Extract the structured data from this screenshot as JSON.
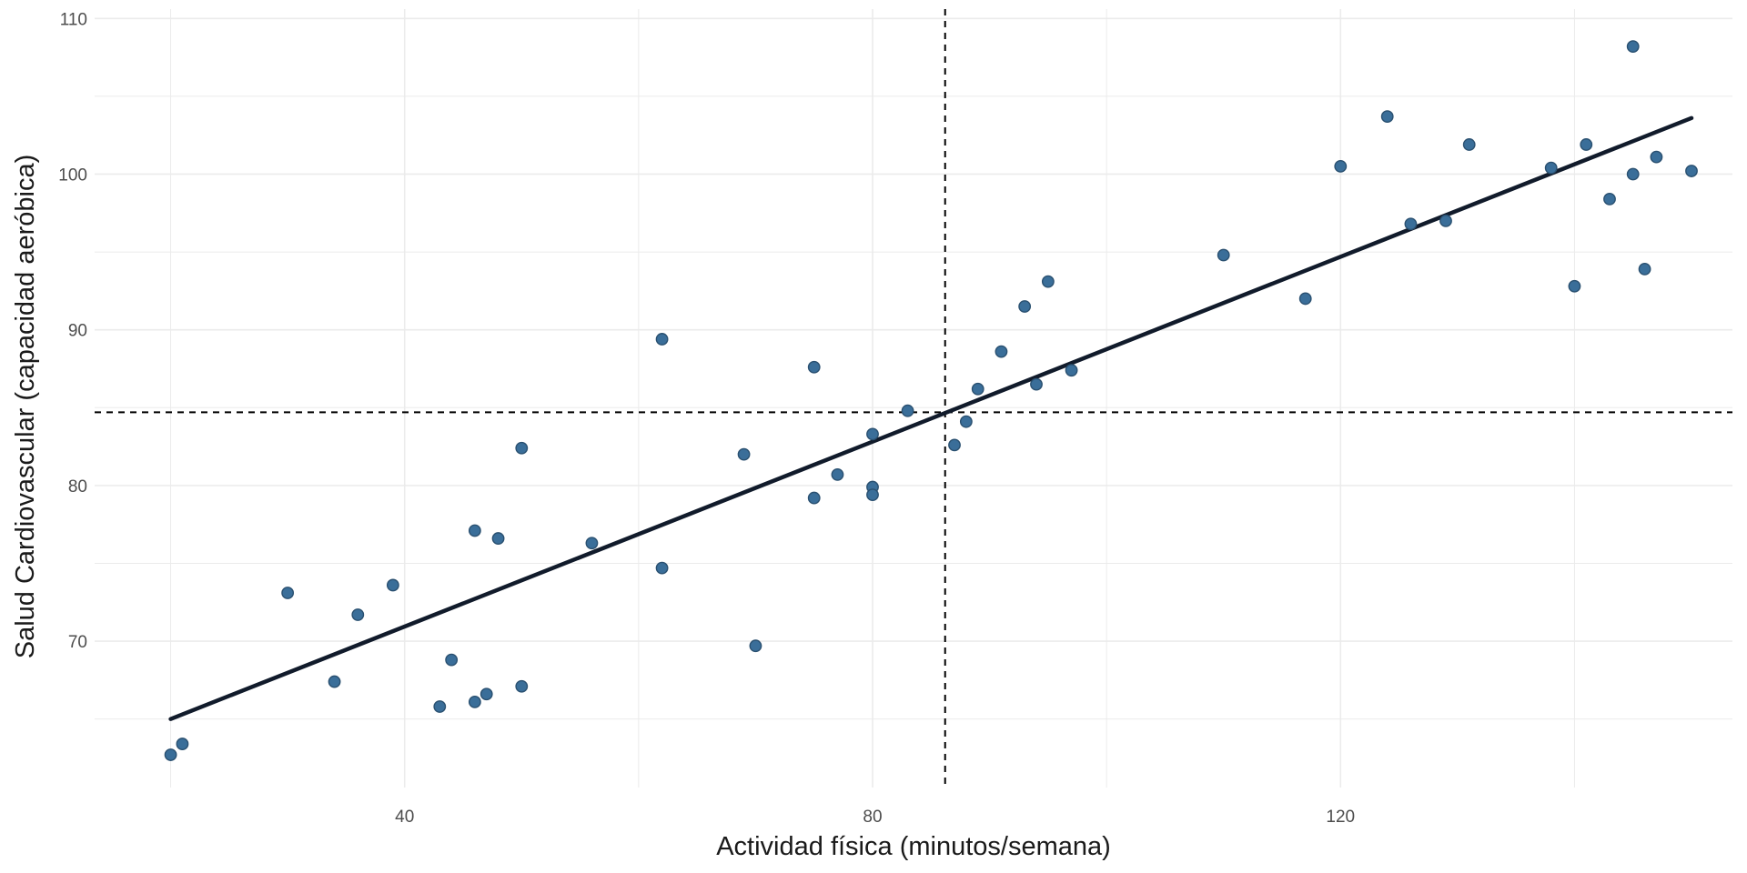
{
  "chart_data": {
    "type": "scatter",
    "title": "",
    "xlabel": "Actividad física (minutos/semana)",
    "ylabel": "Salud Cardiovascular (capacidad aeróbica)",
    "xlim": [
      13.5,
      153.5
    ],
    "ylim": [
      60.6,
      110.6
    ],
    "x_ticks": [
      40,
      80,
      120
    ],
    "x_tick_labels": [
      "40",
      "80",
      "120"
    ],
    "y_ticks": [
      70,
      80,
      90,
      100,
      110
    ],
    "y_tick_labels": [
      "70",
      "80",
      "90",
      "100",
      "110"
    ],
    "grid": true,
    "legend": "none",
    "colors": {
      "points": "#3a6e99",
      "point_outline": "#2a5070",
      "fit_line": "#111b2b",
      "reference_lines": "#000000",
      "grid": "#ebebeb"
    },
    "series": [
      {
        "values": [
          {
            "x": 20,
            "y": 62.7
          },
          {
            "x": 21,
            "y": 63.4
          },
          {
            "x": 30,
            "y": 73.1
          },
          {
            "x": 34,
            "y": 67.4
          },
          {
            "x": 36,
            "y": 71.7
          },
          {
            "x": 39,
            "y": 73.6
          },
          {
            "x": 43,
            "y": 65.8
          },
          {
            "x": 44,
            "y": 68.8
          },
          {
            "x": 46,
            "y": 66.1
          },
          {
            "x": 46,
            "y": 77.1
          },
          {
            "x": 47,
            "y": 66.6
          },
          {
            "x": 48,
            "y": 76.6
          },
          {
            "x": 50,
            "y": 67.1
          },
          {
            "x": 50,
            "y": 82.4
          },
          {
            "x": 56,
            "y": 76.3
          },
          {
            "x": 62,
            "y": 74.7
          },
          {
            "x": 62,
            "y": 89.4
          },
          {
            "x": 69,
            "y": 82.0
          },
          {
            "x": 70,
            "y": 69.7
          },
          {
            "x": 75,
            "y": 79.2
          },
          {
            "x": 75,
            "y": 87.6
          },
          {
            "x": 77,
            "y": 80.7
          },
          {
            "x": 80,
            "y": 79.9
          },
          {
            "x": 80,
            "y": 79.4
          },
          {
            "x": 80,
            "y": 83.3
          },
          {
            "x": 83,
            "y": 84.8
          },
          {
            "x": 87,
            "y": 82.6
          },
          {
            "x": 88,
            "y": 84.1
          },
          {
            "x": 89,
            "y": 86.2
          },
          {
            "x": 91,
            "y": 88.6
          },
          {
            "x": 93,
            "y": 91.5
          },
          {
            "x": 94,
            "y": 86.5
          },
          {
            "x": 95,
            "y": 93.1
          },
          {
            "x": 97,
            "y": 87.4
          },
          {
            "x": 110,
            "y": 94.8
          },
          {
            "x": 117,
            "y": 92.0
          },
          {
            "x": 120,
            "y": 100.5
          },
          {
            "x": 124,
            "y": 103.7
          },
          {
            "x": 126,
            "y": 96.8
          },
          {
            "x": 129,
            "y": 97.0
          },
          {
            "x": 131,
            "y": 101.9
          },
          {
            "x": 138,
            "y": 100.4
          },
          {
            "x": 140,
            "y": 92.8
          },
          {
            "x": 141,
            "y": 101.9
          },
          {
            "x": 143,
            "y": 98.4
          },
          {
            "x": 145,
            "y": 100.0
          },
          {
            "x": 145,
            "y": 108.2
          },
          {
            "x": 146,
            "y": 93.9
          },
          {
            "x": 147,
            "y": 101.1
          },
          {
            "x": 150,
            "y": 100.2
          }
        ]
      }
    ],
    "fit_line": {
      "x": [
        20,
        150
      ],
      "y": [
        65.0,
        103.6
      ]
    },
    "reference_lines": {
      "x_mean": 86.2,
      "y_mean": 84.7
    }
  }
}
